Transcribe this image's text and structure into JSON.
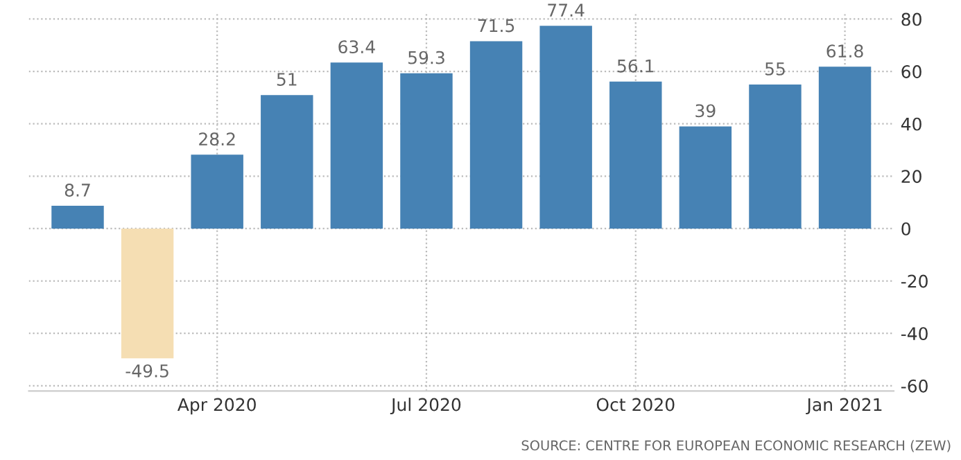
{
  "chart_data": {
    "type": "bar",
    "categories": [
      null,
      null,
      "Apr 2020",
      null,
      null,
      "Jul 2020",
      null,
      null,
      "Oct 2020",
      null,
      null,
      "Jan 2021"
    ],
    "values": [
      8.7,
      -49.5,
      28.2,
      51,
      63.4,
      59.3,
      71.5,
      77.4,
      56.1,
      39,
      55,
      61.8
    ],
    "colors": [
      "#4682b4",
      "#f5deb3",
      "#4682b4",
      "#4682b4",
      "#4682b4",
      "#4682b4",
      "#4682b4",
      "#4682b4",
      "#4682b4",
      "#4682b4",
      "#4682b4",
      "#4682b4"
    ],
    "ylim": [
      -62,
      82
    ],
    "yticks": [
      -60,
      -40,
      -20,
      0,
      20,
      40,
      60,
      80
    ],
    "grid": true,
    "data_labels": true,
    "annotations": [
      "SOURCE: CENTRE FOR EUROPEAN ECONOMIC RESEARCH (ZEW)"
    ]
  }
}
